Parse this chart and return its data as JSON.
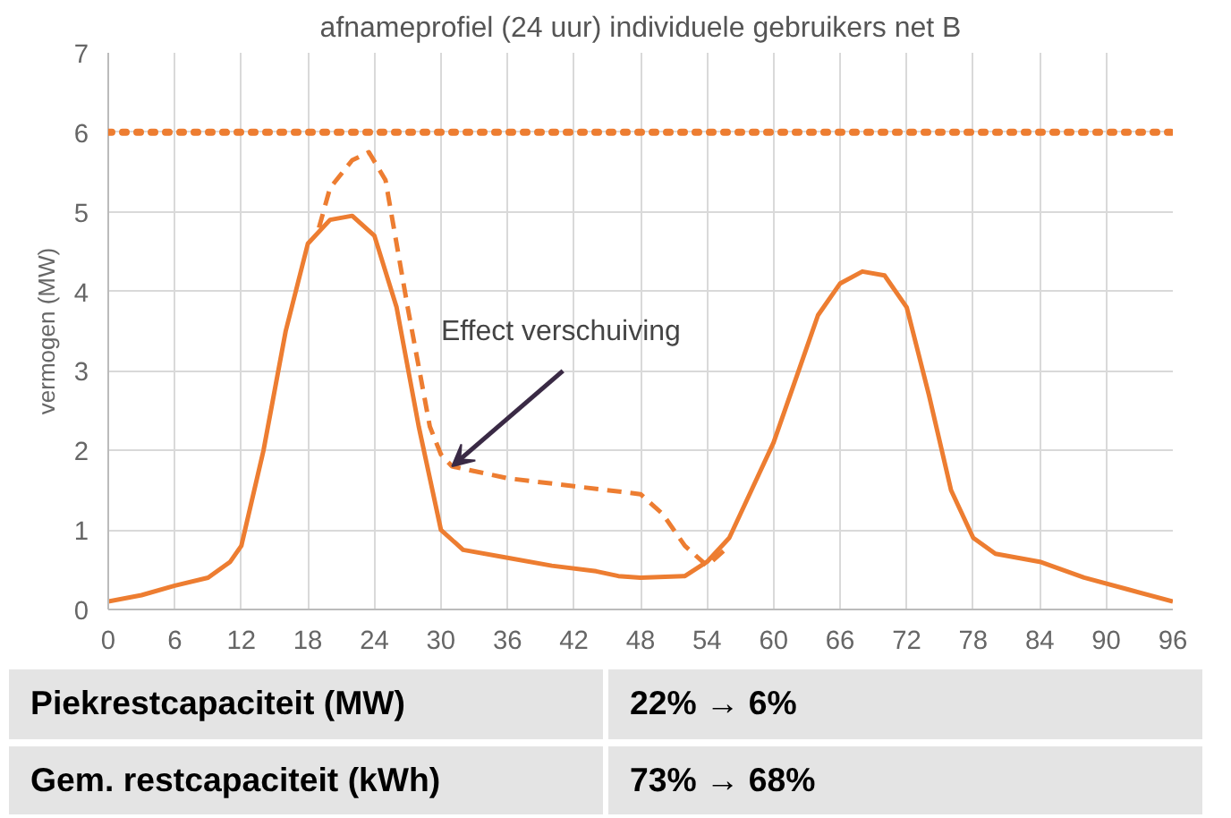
{
  "chart_data": {
    "type": "line",
    "title": "afnameprofiel (24 uur) individuele gebruikers net B",
    "ylabel": "vermogen (MW)",
    "xlim": [
      0,
      96
    ],
    "ylim": [
      0,
      7
    ],
    "xticks": [
      0,
      6,
      12,
      18,
      24,
      30,
      36,
      42,
      48,
      54,
      60,
      66,
      72,
      78,
      84,
      90,
      96
    ],
    "yticks": [
      0,
      1,
      2,
      3,
      4,
      5,
      6,
      7
    ],
    "grid": true,
    "series": [
      {
        "color": "#ed7d31",
        "line_style": "solid",
        "x": [
          0,
          3,
          6,
          9,
          11,
          12,
          14,
          16,
          18,
          20,
          22,
          24,
          26,
          28,
          30,
          32,
          36,
          40,
          44,
          46,
          48,
          52,
          54,
          56,
          58,
          60,
          62,
          64,
          66,
          68,
          70,
          72,
          74,
          76,
          78,
          80,
          84,
          88,
          92,
          96
        ],
        "values": [
          0.1,
          0.18,
          0.3,
          0.4,
          0.6,
          0.8,
          2,
          3.5,
          4.6,
          4.9,
          4.95,
          4.7,
          3.8,
          2.3,
          1.0,
          0.75,
          0.65,
          0.55,
          0.48,
          0.42,
          0.4,
          0.42,
          0.6,
          0.9,
          1.5,
          2.1,
          2.9,
          3.7,
          4.1,
          4.25,
          4.2,
          3.8,
          2.7,
          1.5,
          0.9,
          0.7,
          0.6,
          0.4,
          0.25,
          0.1
        ]
      },
      {
        "color": "#ed7d31",
        "line_style": "dashed",
        "x": [
          19,
          20,
          22,
          23.5,
          25,
          27,
          29,
          30,
          31,
          36,
          42,
          48,
          50,
          52,
          54,
          56
        ],
        "values": [
          4.8,
          5.3,
          5.65,
          5.75,
          5.4,
          3.8,
          2.3,
          1.95,
          1.8,
          1.65,
          1.55,
          1.45,
          1.2,
          0.8,
          0.55,
          0.8
        ]
      }
    ],
    "ref_lines": [
      {
        "axis": "y",
        "value": 6,
        "color": "#ed7d31",
        "line_style": "dotted"
      }
    ],
    "annotations": [
      {
        "text": "Effect verschuiving",
        "x": 31,
        "y": 1.8
      },
      "Piekrestcapaciteit (MW)",
      "22% → 6%",
      "Gem. restcapaciteit (kWh)",
      "73% → 68%"
    ]
  }
}
